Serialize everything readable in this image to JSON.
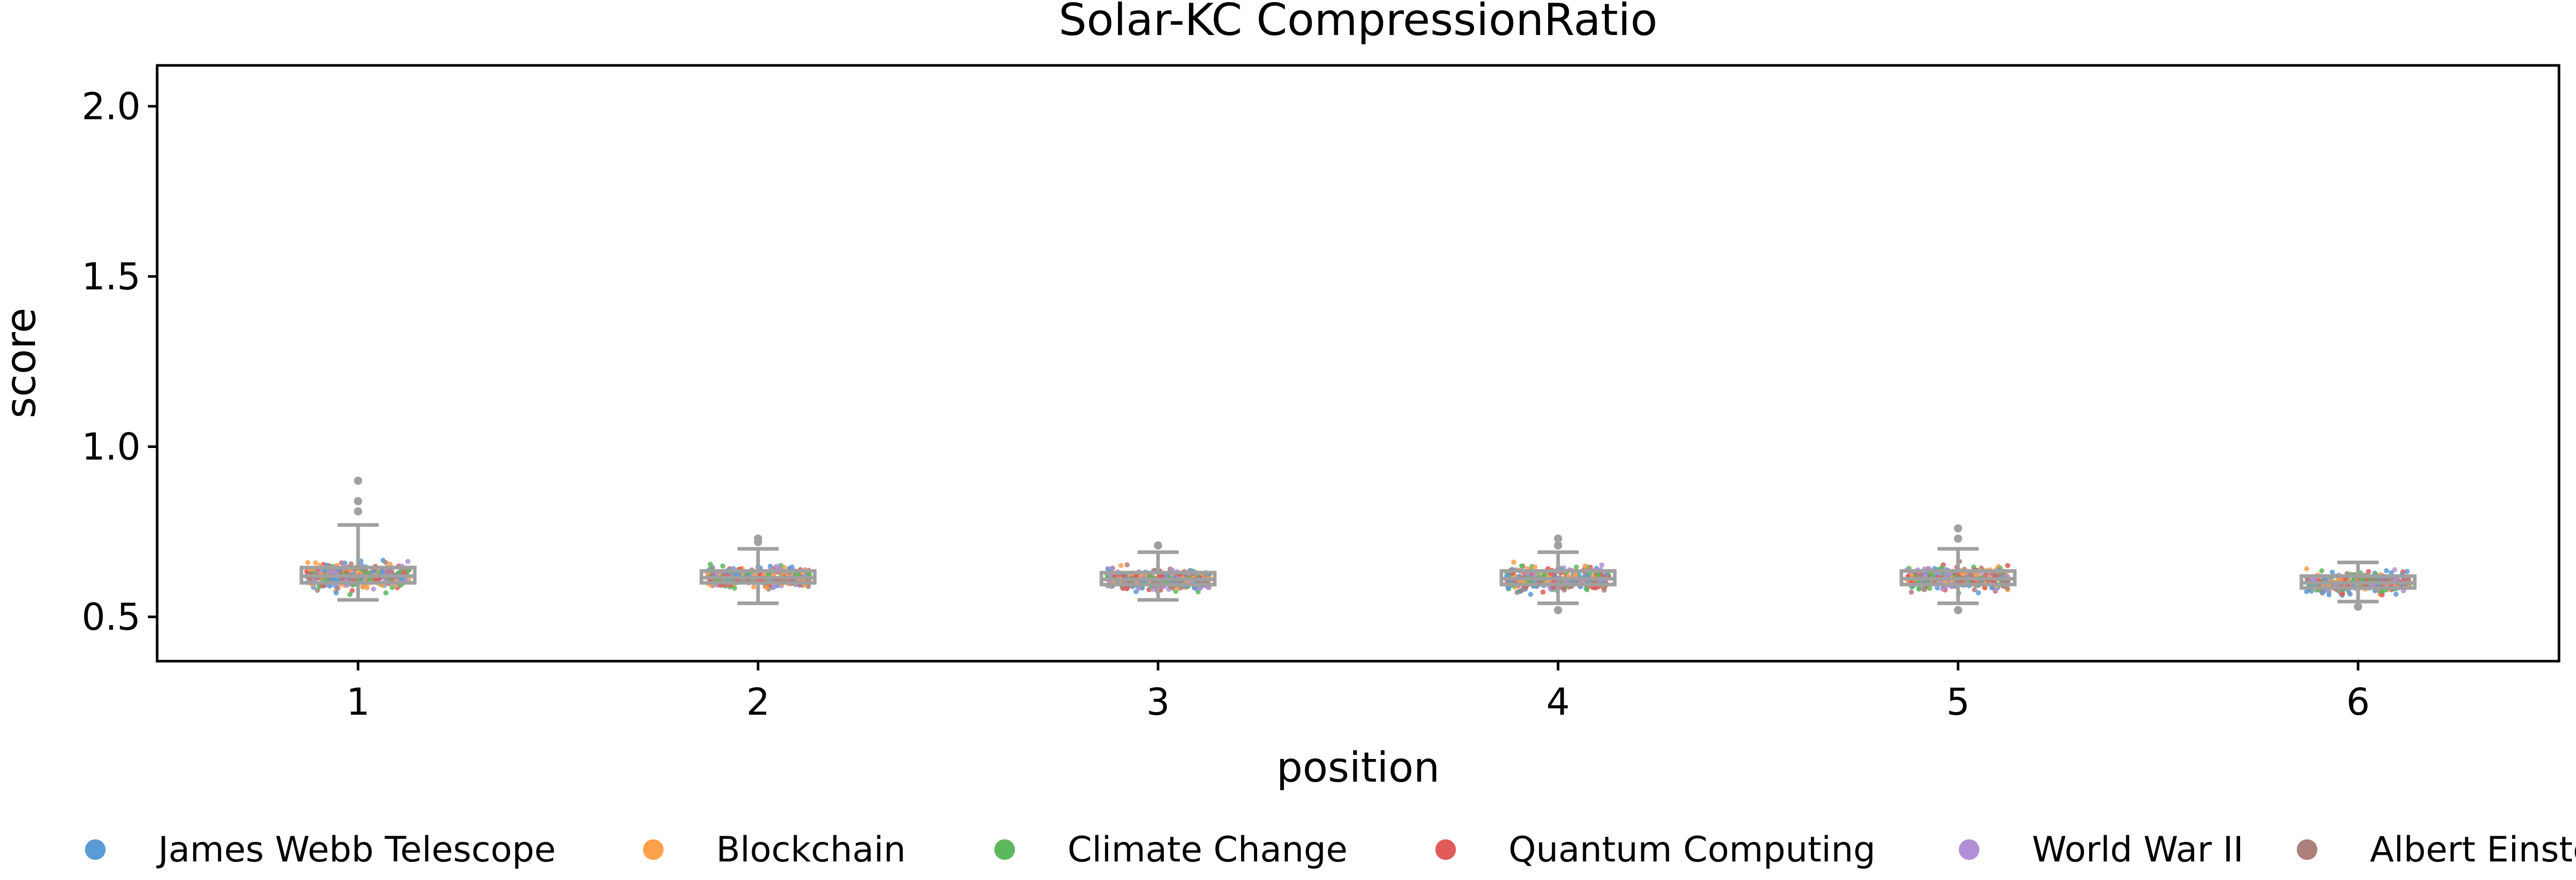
{
  "chart_data": {
    "type": "box-strip",
    "title": "Solar-KC CompressionRatio",
    "xlabel": "position",
    "ylabel": "score",
    "categories": [
      "1",
      "2",
      "3",
      "4",
      "5",
      "6"
    ],
    "ylim": [
      0.37,
      2.12
    ],
    "yticks": [
      0.5,
      1.0,
      1.5,
      2.0
    ],
    "ytick_labels": [
      "0.5",
      "1.0",
      "1.5",
      "2.0"
    ],
    "grid": false,
    "legend_position": "bottom",
    "box_color": "#a0a0a0",
    "series": [
      {
        "name": "James Webb Telescope",
        "color": "#5b9bd5"
      },
      {
        "name": "Blockchain",
        "color": "#ffa04d"
      },
      {
        "name": "Climate Change",
        "color": "#5cb85c"
      },
      {
        "name": "Quantum Computing",
        "color": "#e05a5a"
      },
      {
        "name": "World War II",
        "color": "#b18fd6"
      },
      {
        "name": "Albert Einstein",
        "color": "#ad7f7a"
      }
    ],
    "boxes": [
      {
        "category": "1",
        "whisker_low": 0.55,
        "q1": 0.6,
        "median": 0.62,
        "q3": 0.645,
        "whisker_high": 0.77,
        "fliers": [
          0.81,
          0.84,
          0.9
        ]
      },
      {
        "category": "2",
        "whisker_low": 0.54,
        "q1": 0.6,
        "median": 0.615,
        "q3": 0.635,
        "whisker_high": 0.7,
        "fliers": [
          0.72,
          0.73
        ]
      },
      {
        "category": "3",
        "whisker_low": 0.55,
        "q1": 0.595,
        "median": 0.61,
        "q3": 0.63,
        "whisker_high": 0.69,
        "fliers": [
          0.71
        ]
      },
      {
        "category": "4",
        "whisker_low": 0.54,
        "q1": 0.595,
        "median": 0.612,
        "q3": 0.635,
        "whisker_high": 0.69,
        "fliers": [
          0.52,
          0.71,
          0.73
        ]
      },
      {
        "category": "5",
        "whisker_low": 0.54,
        "q1": 0.595,
        "median": 0.612,
        "q3": 0.635,
        "whisker_high": 0.7,
        "fliers": [
          0.52,
          0.73,
          0.76
        ]
      },
      {
        "category": "6",
        "whisker_low": 0.545,
        "q1": 0.585,
        "median": 0.6,
        "q3": 0.62,
        "whisker_high": 0.66,
        "fliers": [
          0.53
        ]
      }
    ]
  }
}
